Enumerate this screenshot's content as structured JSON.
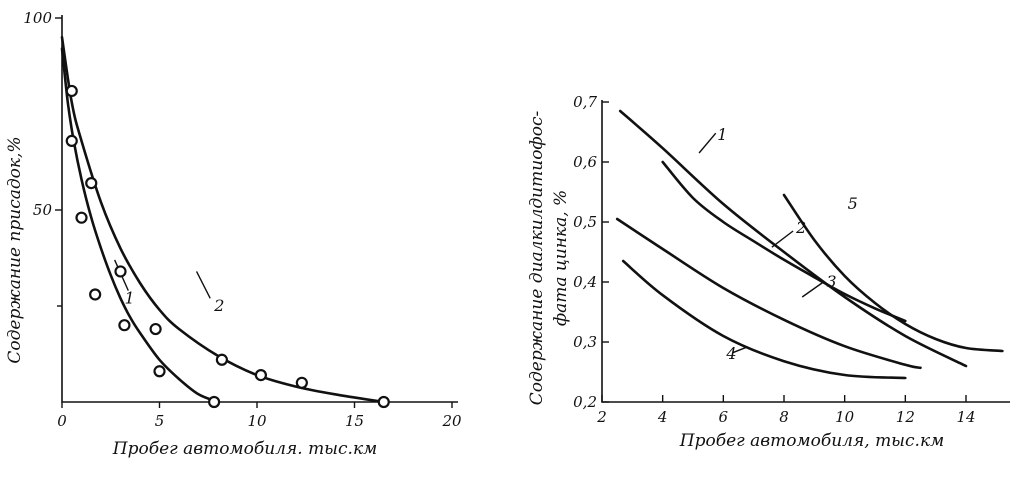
{
  "chart_data": [
    {
      "type": "scatter",
      "xlabel": "Пробег автомобиля. тыс.км",
      "ylabel": "Содержание присадок,%",
      "xlim": [
        0,
        20
      ],
      "ylim": [
        0,
        100
      ],
      "xticks": [
        "0",
        "5",
        "10",
        "15",
        "20"
      ],
      "yticks": [
        "50",
        "100"
      ],
      "series": [
        {
          "name": "1",
          "curve_x": [
            0,
            0.3,
            0.6,
            1.0,
            1.5,
            2.0,
            2.5,
            3.0,
            3.5,
            4.0,
            5.0,
            6.0,
            7.0,
            8.0
          ],
          "curve_y": [
            92,
            78,
            68,
            58,
            48,
            40,
            33,
            27,
            22,
            18,
            11,
            6,
            2,
            0
          ],
          "points_x": [
            0.5,
            1.0,
            1.7,
            3.2,
            5.0,
            7.8
          ],
          "points_y": [
            68,
            48,
            28,
            20,
            8,
            0
          ]
        },
        {
          "name": "2",
          "curve_x": [
            0,
            0.5,
            1.0,
            2.0,
            3.0,
            4.0,
            5.0,
            6.0,
            8.0,
            10.0,
            12.0,
            14.0,
            16.5
          ],
          "curve_y": [
            95,
            78,
            68,
            52,
            40,
            31,
            24,
            19,
            12,
            7,
            4,
            2,
            0
          ],
          "points_x": [
            0.5,
            1.5,
            3.0,
            4.8,
            8.2,
            10.2,
            12.3,
            16.5
          ],
          "points_y": [
            81,
            57,
            34,
            19,
            11,
            7,
            5,
            0
          ]
        }
      ]
    },
    {
      "type": "line",
      "xlabel": "Пробег автомобиля, тыс.км",
      "ylabel_line1": "Содержание диалкилдитиофос-",
      "ylabel_line2": "фата цинка, %",
      "xlim": [
        2,
        15.2
      ],
      "ylim": [
        0.2,
        0.7
      ],
      "xticks": [
        "2",
        "4",
        "6",
        "8",
        "10",
        "12",
        "14"
      ],
      "yticks": [
        "0,2",
        "0,3",
        "0,4",
        "0,5",
        "0,6",
        "0,7"
      ],
      "series": [
        {
          "name": "1",
          "x": [
            2.6,
            4,
            6,
            8,
            10,
            12,
            14
          ],
          "y": [
            0.685,
            0.623,
            0.53,
            0.45,
            0.375,
            0.31,
            0.26
          ]
        },
        {
          "name": "2",
          "x": [
            4,
            5,
            6,
            7,
            8,
            9,
            10,
            11,
            12
          ],
          "y": [
            0.6,
            0.54,
            0.5,
            0.468,
            0.437,
            0.408,
            0.38,
            0.356,
            0.335
          ]
        },
        {
          "name": "3",
          "x": [
            2.5,
            4,
            6,
            8,
            10,
            12,
            12.5
          ],
          "y": [
            0.505,
            0.455,
            0.39,
            0.337,
            0.293,
            0.262,
            0.257
          ]
        },
        {
          "name": "4",
          "x": [
            2.7,
            4,
            6,
            8,
            10,
            12
          ],
          "y": [
            0.435,
            0.378,
            0.31,
            0.268,
            0.245,
            0.24
          ]
        },
        {
          "name": "5",
          "x": [
            8,
            9,
            10,
            11,
            12,
            13,
            14,
            15.2
          ],
          "y": [
            0.545,
            0.47,
            0.41,
            0.365,
            0.33,
            0.305,
            0.29,
            0.285
          ]
        }
      ]
    }
  ]
}
